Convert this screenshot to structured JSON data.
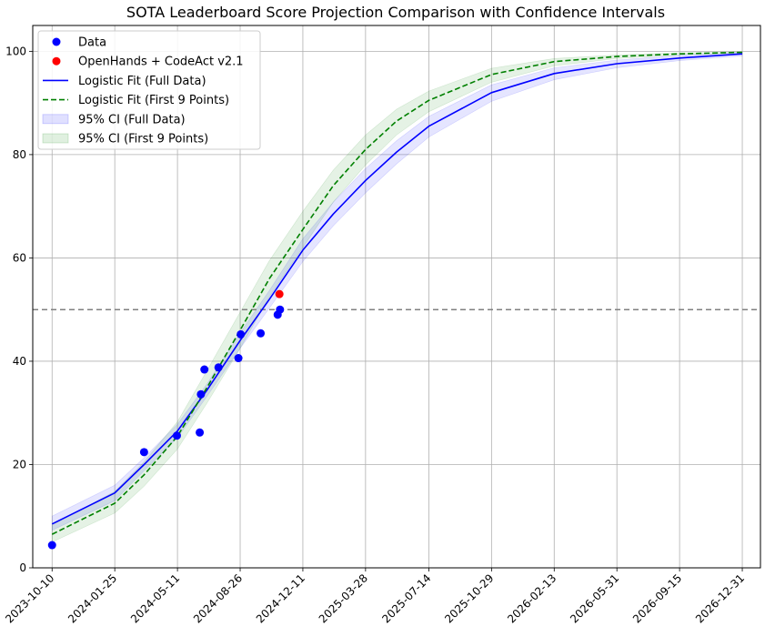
{
  "chart_data": {
    "type": "line",
    "title": "SOTA Leaderboard Score Projection Comparison with Confidence Intervals",
    "xlabel": "",
    "ylabel": "",
    "x_ticks": [
      "2023-10-10",
      "2024-01-25",
      "2024-05-11",
      "2024-08-26",
      "2024-12-11",
      "2025-03-28",
      "2025-07-14",
      "2025-10-29",
      "2026-02-13",
      "2026-05-31",
      "2026-09-15",
      "2026-12-31"
    ],
    "y_ticks": [
      0,
      20,
      40,
      60,
      80,
      100
    ],
    "xlim": [
      "2023-09-07",
      "2027-01-31"
    ],
    "ylim": [
      0,
      105
    ],
    "grid": true,
    "legend_position": "upper left",
    "threshold_line": {
      "y": 50,
      "style": "dashed",
      "color": "#808080"
    },
    "series": [
      {
        "name": "Data",
        "kind": "scatter",
        "color": "#0000ff",
        "points": [
          {
            "x": "2023-10-10",
            "y": 4.4
          },
          {
            "x": "2024-03-15",
            "y": 22.4
          },
          {
            "x": "2024-05-10",
            "y": 25.6
          },
          {
            "x": "2024-06-18",
            "y": 26.2
          },
          {
            "x": "2024-06-20",
            "y": 33.6
          },
          {
            "x": "2024-06-26",
            "y": 38.4
          },
          {
            "x": "2024-07-20",
            "y": 38.8
          },
          {
            "x": "2024-08-23",
            "y": 40.6
          },
          {
            "x": "2024-08-27",
            "y": 45.2
          },
          {
            "x": "2024-09-30",
            "y": 45.4
          },
          {
            "x": "2024-10-29",
            "y": 49.0
          },
          {
            "x": "2024-11-02",
            "y": 50.0
          }
        ]
      },
      {
        "name": "OpenHands + CodeAct v2.1",
        "kind": "scatter",
        "color": "#ff0000",
        "points": [
          {
            "x": "2024-11-01",
            "y": 53.0
          }
        ]
      },
      {
        "name": "Logistic Fit (Full Data)",
        "kind": "line",
        "style": "solid",
        "color": "#0000ff",
        "points": [
          {
            "x": "2023-10-10",
            "y": 8.5
          },
          {
            "x": "2024-01-25",
            "y": 14.5
          },
          {
            "x": "2024-03-15",
            "y": 20.0
          },
          {
            "x": "2024-05-11",
            "y": 26.5
          },
          {
            "x": "2024-07-01",
            "y": 34.5
          },
          {
            "x": "2024-08-26",
            "y": 44.0
          },
          {
            "x": "2024-10-15",
            "y": 52.0
          },
          {
            "x": "2024-12-11",
            "y": 61.5
          },
          {
            "x": "2025-02-01",
            "y": 68.5
          },
          {
            "x": "2025-03-28",
            "y": 75.0
          },
          {
            "x": "2025-05-20",
            "y": 80.5
          },
          {
            "x": "2025-07-14",
            "y": 85.5
          },
          {
            "x": "2025-10-29",
            "y": 92.0
          },
          {
            "x": "2026-02-13",
            "y": 95.7
          },
          {
            "x": "2026-05-31",
            "y": 97.6
          },
          {
            "x": "2026-09-15",
            "y": 98.7
          },
          {
            "x": "2026-12-31",
            "y": 99.5
          }
        ],
        "ci_lower": [
          7.3,
          13.0,
          18.8,
          25.2,
          33.3,
          42.5,
          50.3,
          59.3,
          66.2,
          72.6,
          78.2,
          83.4,
          90.3,
          94.5,
          96.8,
          98.2,
          99.1
        ],
        "ci_upper": [
          10.0,
          16.0,
          21.3,
          27.8,
          35.7,
          45.5,
          53.7,
          63.7,
          70.8,
          77.3,
          82.7,
          87.4,
          93.5,
          96.8,
          98.3,
          99.2,
          99.8
        ]
      },
      {
        "name": "Logistic Fit (First 9 Points)",
        "kind": "line",
        "style": "dashed",
        "color": "#008000",
        "points": [
          {
            "x": "2023-10-10",
            "y": 6.5
          },
          {
            "x": "2024-01-25",
            "y": 12.5
          },
          {
            "x": "2024-03-15",
            "y": 18.0
          },
          {
            "x": "2024-05-11",
            "y": 25.5
          },
          {
            "x": "2024-07-01",
            "y": 35.0
          },
          {
            "x": "2024-08-26",
            "y": 46.0
          },
          {
            "x": "2024-10-15",
            "y": 56.0
          },
          {
            "x": "2024-12-11",
            "y": 65.5
          },
          {
            "x": "2025-02-01",
            "y": 74.0
          },
          {
            "x": "2025-03-28",
            "y": 81.0
          },
          {
            "x": "2025-05-20",
            "y": 86.5
          },
          {
            "x": "2025-07-14",
            "y": 90.5
          },
          {
            "x": "2025-10-29",
            "y": 95.5
          },
          {
            "x": "2026-02-13",
            "y": 98.0
          },
          {
            "x": "2026-05-31",
            "y": 99.0
          },
          {
            "x": "2026-09-15",
            "y": 99.5
          },
          {
            "x": "2026-12-31",
            "y": 99.8
          }
        ],
        "ci_lower": [
          5.0,
          10.6,
          15.8,
          23.0,
          32.0,
          42.5,
          52.5,
          62.0,
          70.8,
          78.0,
          83.8,
          88.3,
          94.0,
          97.2,
          98.6,
          99.3,
          99.7
        ],
        "ci_upper": [
          8.3,
          14.8,
          20.5,
          28.3,
          38.3,
          49.5,
          59.5,
          69.0,
          77.0,
          83.8,
          88.8,
          92.3,
          96.7,
          98.6,
          99.3,
          99.7,
          99.9
        ]
      }
    ],
    "legend": [
      {
        "label": "Data",
        "kind": "marker",
        "color": "#0000ff"
      },
      {
        "label": "OpenHands + CodeAct v2.1",
        "kind": "marker",
        "color": "#ff0000"
      },
      {
        "label": "Logistic Fit (Full Data)",
        "kind": "line",
        "color": "#0000ff"
      },
      {
        "label": "Logistic Fit (First 9 Points)",
        "kind": "dashed",
        "color": "#008000"
      },
      {
        "label": "95% CI (Full Data)",
        "kind": "patch",
        "color": "#0000ff"
      },
      {
        "label": "95% CI (First 9 Points)",
        "kind": "patch",
        "color": "#008000"
      }
    ]
  }
}
